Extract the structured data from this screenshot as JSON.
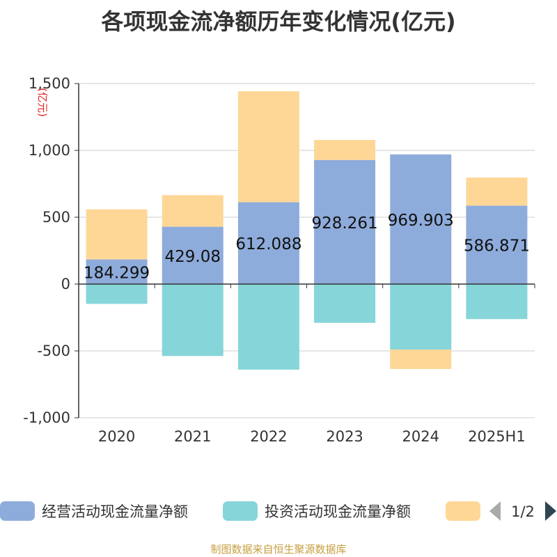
{
  "title": "各项现金流净额历年变化情况(亿元)",
  "source": "制图数据来自恒生聚源数据库",
  "chart_data": {
    "type": "bar",
    "stacked": true,
    "unit_label": "(亿元)",
    "categories": [
      "2020",
      "2021",
      "2022",
      "2023",
      "2024",
      "2025H1"
    ],
    "ylim": [
      -1000,
      1500
    ],
    "yticks": [
      1500,
      1000,
      500,
      0,
      -500,
      -1000
    ],
    "ytick_labels": [
      "1,500",
      "1,000",
      "500",
      "0",
      "-500",
      "-1,000"
    ],
    "grid": true,
    "series": [
      {
        "name": "经营活动现金流量净额",
        "color": "#8eacdb",
        "values": [
          184.299,
          429.08,
          612.088,
          928.261,
          969.903,
          586.871
        ],
        "labels": [
          "184.299",
          "429.08",
          "612.088",
          "928.261",
          "969.903",
          "586.871"
        ]
      },
      {
        "name": "投资活动现金流量净额",
        "color": "#86d5d9",
        "values": [
          -148,
          -538,
          -640,
          -290,
          -490,
          -262
        ]
      },
      {
        "name": "",
        "color": "#fed797",
        "values": [
          375,
          236,
          830,
          150,
          -145,
          210
        ]
      }
    ],
    "legend": {
      "position": "bottom",
      "page": "1/2"
    }
  }
}
